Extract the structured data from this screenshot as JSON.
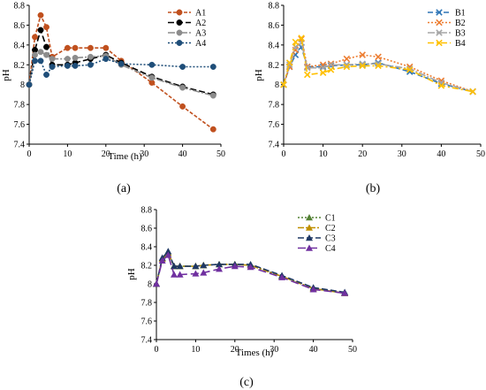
{
  "chart_data": [
    {
      "type": "line",
      "panel_label": "(a)",
      "xlabel": "Time (h)",
      "ylabel": "pH",
      "xlim": [
        0,
        50
      ],
      "ylim": [
        7.4,
        8.8
      ],
      "xticks": [
        "0",
        "10",
        "20",
        "30",
        "40",
        "50"
      ],
      "yticks": [
        "7.4",
        "7.6",
        "7.8",
        "8",
        "8.2",
        "8.4",
        "8.6",
        "8.8"
      ],
      "legend_position": "top-right",
      "grid": false,
      "series": [
        {
          "name": "A1",
          "color": "#c0501e",
          "dash": "4,2",
          "marker": "circle",
          "x": [
            0,
            1.5,
            3,
            4.5,
            6,
            10,
            12,
            16,
            20,
            24,
            32,
            40,
            48
          ],
          "y": [
            8.0,
            8.48,
            8.7,
            8.58,
            8.28,
            8.37,
            8.37,
            8.37,
            8.37,
            8.24,
            8.02,
            7.78,
            7.55
          ]
        },
        {
          "name": "A2",
          "color": "#000000",
          "dash": "7,3",
          "marker": "circle",
          "x": [
            0,
            1.5,
            3,
            4.5,
            6,
            10,
            12,
            16,
            20,
            24,
            32,
            40,
            48
          ],
          "y": [
            8.0,
            8.35,
            8.55,
            8.38,
            8.2,
            8.2,
            8.22,
            8.26,
            8.3,
            8.22,
            8.08,
            7.98,
            7.9
          ]
        },
        {
          "name": "A3",
          "color": "#8c8c8c",
          "dash": "8,2,2,2",
          "marker": "circle",
          "x": [
            0,
            1.5,
            3,
            4.5,
            6,
            10,
            12,
            16,
            20,
            24,
            32,
            40,
            48
          ],
          "y": [
            8.0,
            8.3,
            8.33,
            8.3,
            8.26,
            8.26,
            8.27,
            8.28,
            8.29,
            8.2,
            8.07,
            7.97,
            7.89
          ]
        },
        {
          "name": "A4",
          "color": "#1f4e79",
          "dash": "2,2",
          "marker": "circle",
          "x": [
            0,
            1.5,
            3,
            4.5,
            6,
            10,
            12,
            16,
            20,
            24,
            32,
            40,
            48
          ],
          "y": [
            8.0,
            8.24,
            8.24,
            8.1,
            8.18,
            8.19,
            8.19,
            8.2,
            8.26,
            8.21,
            8.2,
            8.18,
            8.18
          ]
        }
      ]
    },
    {
      "type": "line",
      "panel_label": "(b)",
      "xlabel": "",
      "ylabel": "pH",
      "xlim": [
        0,
        50
      ],
      "ylim": [
        7.4,
        8.8
      ],
      "xticks": [
        "0",
        "10",
        "20",
        "30",
        "40",
        "50"
      ],
      "yticks": [
        "7.4",
        "7.6",
        "7.8",
        "8",
        "8.2",
        "8.4",
        "8.6",
        "8.8"
      ],
      "legend_position": "top-right",
      "grid": false,
      "series": [
        {
          "name": "B1",
          "color": "#2e75b6",
          "dash": "6,3",
          "marker": "x",
          "x": [
            0,
            1.5,
            3,
            4.5,
            6,
            10,
            12,
            16,
            20,
            24,
            32,
            40,
            48
          ],
          "y": [
            8.0,
            8.18,
            8.3,
            8.38,
            8.18,
            8.18,
            8.19,
            8.2,
            8.2,
            8.22,
            8.13,
            8.01,
            7.93
          ]
        },
        {
          "name": "B2",
          "color": "#ed7d31",
          "dash": "2,2",
          "marker": "x",
          "x": [
            0,
            1.5,
            3,
            4.5,
            6,
            10,
            12,
            16,
            20,
            24,
            32,
            40,
            48
          ],
          "y": [
            8.0,
            8.18,
            8.35,
            8.46,
            8.18,
            8.2,
            8.21,
            8.26,
            8.3,
            8.28,
            8.18,
            8.04,
            7.93
          ]
        },
        {
          "name": "B3",
          "color": "#a5a5a5",
          "dash": "8,2,2,2",
          "marker": "x",
          "x": [
            0,
            1.5,
            3,
            4.5,
            6,
            10,
            12,
            16,
            20,
            24,
            32,
            40,
            48
          ],
          "y": [
            8.0,
            8.2,
            8.38,
            8.42,
            8.17,
            8.17,
            8.2,
            8.2,
            8.21,
            8.21,
            8.16,
            8.02,
            7.93
          ]
        },
        {
          "name": "B4",
          "color": "#ffc000",
          "dash": "7,3,2,3",
          "marker": "x",
          "x": [
            0,
            1.5,
            3,
            4.5,
            6,
            10,
            12,
            16,
            20,
            24,
            32,
            40,
            48
          ],
          "y": [
            8.0,
            8.22,
            8.43,
            8.47,
            8.1,
            8.12,
            8.15,
            8.18,
            8.19,
            8.19,
            8.15,
            7.99,
            7.93
          ]
        }
      ]
    },
    {
      "type": "line",
      "panel_label": "(c)",
      "xlabel": "Times (h)",
      "ylabel": "pH",
      "xlim": [
        0,
        50
      ],
      "ylim": [
        7.4,
        8.8
      ],
      "xticks": [
        "0",
        "10",
        "20",
        "30",
        "40",
        "50"
      ],
      "yticks": [
        "7.4",
        "7.6",
        "7.8",
        "8",
        "8.2",
        "8.4",
        "8.6",
        "8.8"
      ],
      "legend_position": "top-right",
      "grid": false,
      "series": [
        {
          "name": "C1",
          "color": "#548235",
          "dash": "2,2",
          "marker": "triangle",
          "x": [
            0,
            1.5,
            3,
            4.5,
            6,
            10,
            12,
            16,
            20,
            24,
            32,
            40,
            48
          ],
          "y": [
            8.0,
            8.27,
            8.33,
            8.19,
            8.19,
            8.19,
            8.2,
            8.21,
            8.21,
            8.2,
            8.08,
            7.95,
            7.9
          ]
        },
        {
          "name": "C2",
          "color": "#bf8f00",
          "dash": "7,2,2,2",
          "marker": "triangle",
          "x": [
            0,
            1.5,
            3,
            4.5,
            6,
            10,
            12,
            16,
            20,
            24,
            32,
            40,
            48
          ],
          "y": [
            8.0,
            8.27,
            8.33,
            8.19,
            8.19,
            8.19,
            8.2,
            8.21,
            8.21,
            8.2,
            8.08,
            7.95,
            7.9
          ]
        },
        {
          "name": "C3",
          "color": "#1f3864",
          "dash": "7,3",
          "marker": "triangle",
          "x": [
            0,
            1.5,
            3,
            4.5,
            6,
            10,
            12,
            16,
            20,
            24,
            32,
            40,
            48
          ],
          "y": [
            8.0,
            8.28,
            8.35,
            8.19,
            8.19,
            8.19,
            8.2,
            8.21,
            8.21,
            8.21,
            8.09,
            7.96,
            7.91
          ]
        },
        {
          "name": "C4",
          "color": "#7030a0",
          "dash": "9,4",
          "marker": "triangle",
          "x": [
            0,
            1.5,
            3,
            4.5,
            6,
            10,
            12,
            16,
            20,
            24,
            32,
            40,
            48
          ],
          "y": [
            8.0,
            8.25,
            8.31,
            8.1,
            8.1,
            8.11,
            8.12,
            8.16,
            8.19,
            8.18,
            8.07,
            7.94,
            7.9
          ]
        }
      ]
    }
  ]
}
